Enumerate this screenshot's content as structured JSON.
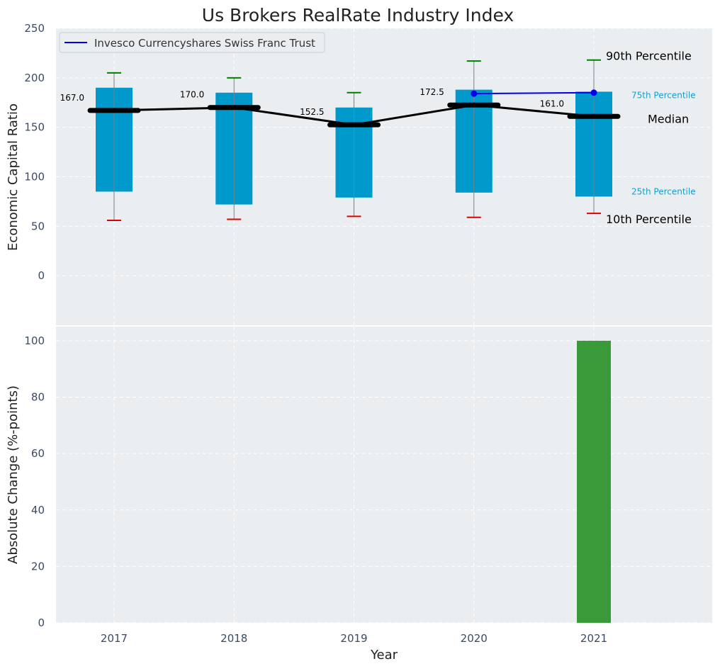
{
  "chart_data": [
    {
      "type": "box",
      "title": "Us Brokers RealRate Industry Index",
      "xlabel": "",
      "ylabel": "Economic Capital Ratio",
      "ylim": [
        -50,
        250
      ],
      "yticks": [
        0,
        50,
        100,
        150,
        200,
        250
      ],
      "categories": [
        "2017",
        "2018",
        "2019",
        "2020",
        "2021"
      ],
      "p10": [
        56,
        57,
        60,
        59,
        63
      ],
      "p25": [
        85,
        72,
        79,
        84,
        80
      ],
      "median": [
        167.0,
        170.0,
        152.5,
        172.5,
        161.0
      ],
      "median_labels": [
        "167.0",
        "170.0",
        "152.5",
        "172.5",
        "161.0"
      ],
      "p75": [
        190,
        185,
        170,
        188,
        186
      ],
      "p90": [
        205,
        200,
        185,
        217,
        218
      ],
      "company_series": {
        "name": "Invesco Currencyshares Swiss Franc Trust",
        "x": [
          "2020",
          "2021"
        ],
        "values": [
          184,
          185
        ]
      },
      "annotations": {
        "p90": "90th Percentile",
        "p75": "75th Percentile",
        "median": "Median",
        "p25": "25th Percentile",
        "p10": "10th Percentile"
      },
      "legend": "upper-left",
      "grid": true
    },
    {
      "type": "bar",
      "xlabel": "Year",
      "ylabel": "Absolute Change (%-points)",
      "ylim": [
        0,
        105
      ],
      "yticks": [
        0,
        20,
        40,
        60,
        80,
        100
      ],
      "categories": [
        "2017",
        "2018",
        "2019",
        "2020",
        "2021"
      ],
      "values": [
        null,
        null,
        null,
        null,
        100
      ],
      "grid": true
    }
  ],
  "colors": {
    "plot_bg": "#eaeef0",
    "box": "#0099cc",
    "median": "#000000",
    "p90_cap": "#008000",
    "p10_cap": "#dd0000",
    "company_line": "#0000ee",
    "change_bar": "#3a9a3a",
    "percentile_label": "#1a9ec9",
    "axis_text": "#3a4a66"
  }
}
